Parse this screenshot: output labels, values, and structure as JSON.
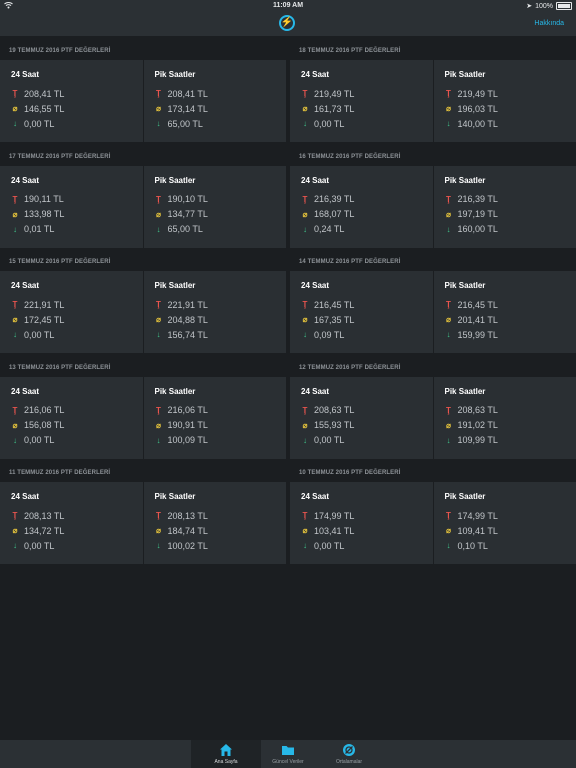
{
  "status": {
    "time": "11:09 AM",
    "battery": "100%"
  },
  "nav": {
    "about": "Hakkında"
  },
  "labels": {
    "daily": "24 Saat",
    "peak": "Pik Saatler"
  },
  "days": [
    {
      "date": "19 Temmuz 2016 PTF DEĞERLERİ",
      "daily": {
        "max": "208,41 TL",
        "avg": "146,55 TL",
        "min": "0,00 TL"
      },
      "peak": {
        "max": "208,41 TL",
        "avg": "173,14 TL",
        "min": "65,00 TL"
      }
    },
    {
      "date": "18 Temmuz 2016 PTF DEĞERLERİ",
      "daily": {
        "max": "219,49 TL",
        "avg": "161,73 TL",
        "min": "0,00 TL"
      },
      "peak": {
        "max": "219,49 TL",
        "avg": "196,03 TL",
        "min": "140,00 TL"
      }
    },
    {
      "date": "17 Temmuz 2016 PTF DEĞERLERİ",
      "daily": {
        "max": "190,11 TL",
        "avg": "133,98 TL",
        "min": "0,01 TL"
      },
      "peak": {
        "max": "190,10 TL",
        "avg": "134,77 TL",
        "min": "65,00 TL"
      }
    },
    {
      "date": "16 Temmuz 2016 PTF DEĞERLERİ",
      "daily": {
        "max": "216,39 TL",
        "avg": "168,07 TL",
        "min": "0,24 TL"
      },
      "peak": {
        "max": "216,39 TL",
        "avg": "197,19 TL",
        "min": "160,00 TL"
      }
    },
    {
      "date": "15 Temmuz 2016 PTF DEĞERLERİ",
      "daily": {
        "max": "221,91 TL",
        "avg": "172,45 TL",
        "min": "0,00 TL"
      },
      "peak": {
        "max": "221,91 TL",
        "avg": "204,88 TL",
        "min": "156,74 TL"
      }
    },
    {
      "date": "14 Temmuz 2016 PTF DEĞERLERİ",
      "daily": {
        "max": "216,45 TL",
        "avg": "167,35 TL",
        "min": "0,09 TL"
      },
      "peak": {
        "max": "216,45 TL",
        "avg": "201,41 TL",
        "min": "159,99 TL"
      }
    },
    {
      "date": "13 Temmuz 2016 PTF DEĞERLERİ",
      "daily": {
        "max": "216,06 TL",
        "avg": "156,08 TL",
        "min": "0,00 TL"
      },
      "peak": {
        "max": "216,06 TL",
        "avg": "190,91 TL",
        "min": "100,09 TL"
      }
    },
    {
      "date": "12 Temmuz 2016 PTF DEĞERLERİ",
      "daily": {
        "max": "208,63 TL",
        "avg": "155,93 TL",
        "min": "0,00 TL"
      },
      "peak": {
        "max": "208,63 TL",
        "avg": "191,02 TL",
        "min": "109,99 TL"
      }
    },
    {
      "date": "11 Temmuz 2016 PTF DEĞERLERİ",
      "daily": {
        "max": "208,13 TL",
        "avg": "134,72 TL",
        "min": "0,00 TL"
      },
      "peak": {
        "max": "208,13 TL",
        "avg": "184,74 TL",
        "min": "100,02 TL"
      }
    },
    {
      "date": "10 Temmuz 2016 PTF DEĞERLERİ",
      "daily": {
        "max": "174,99 TL",
        "avg": "103,41 TL",
        "min": "0,00 TL"
      },
      "peak": {
        "max": "174,99 TL",
        "avg": "109,41 TL",
        "min": "0,10 TL"
      }
    }
  ],
  "icons": {
    "max": "max-thermometer-icon",
    "avg": "average-icon",
    "min": "min-down-arrow-icon"
  },
  "colors": {
    "accent": "#27b8e8",
    "max": "#e8544e",
    "avg": "#e3c23c",
    "min": "#3fc38a"
  },
  "tabs": [
    {
      "label": "Ana Sayfa",
      "icon": "home-icon",
      "active": true
    },
    {
      "label": "Güncel Veriler",
      "icon": "folder-icon",
      "active": false
    },
    {
      "label": "Ortalamalar",
      "icon": "average-circle-icon",
      "active": false
    }
  ]
}
